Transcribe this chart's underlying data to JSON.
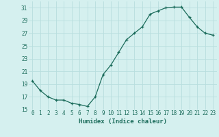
{
  "x": [
    0,
    1,
    2,
    3,
    4,
    5,
    6,
    7,
    8,
    9,
    10,
    11,
    12,
    13,
    14,
    15,
    16,
    17,
    18,
    19,
    20,
    21,
    22,
    23
  ],
  "y": [
    19.5,
    18.0,
    17.0,
    16.5,
    16.5,
    16.0,
    15.8,
    15.5,
    17.0,
    20.5,
    22.0,
    24.0,
    26.0,
    27.0,
    28.0,
    30.0,
    30.5,
    31.0,
    31.1,
    31.1,
    29.5,
    28.0,
    27.0,
    26.7
  ],
  "xlabel": "Humidex (Indice chaleur)",
  "ylim": [
    15,
    32
  ],
  "xlim_min": -0.5,
  "xlim_max": 23.5,
  "yticks": [
    15,
    17,
    19,
    21,
    23,
    25,
    27,
    29,
    31
  ],
  "xticks": [
    0,
    1,
    2,
    3,
    4,
    5,
    6,
    7,
    8,
    9,
    10,
    11,
    12,
    13,
    14,
    15,
    16,
    17,
    18,
    19,
    20,
    21,
    22,
    23
  ],
  "xtick_labels": [
    "0",
    "1",
    "2",
    "3",
    "4",
    "5",
    "6",
    "7",
    "8",
    "9",
    "10",
    "11",
    "12",
    "13",
    "14",
    "15",
    "16",
    "17",
    "18",
    "19",
    "20",
    "21",
    "22",
    "23"
  ],
  "line_color": "#1a6b5a",
  "marker": "+",
  "bg_color": "#d5f0ef",
  "grid_color": "#b8dede",
  "xlabel_fontsize": 6.5,
  "tick_fontsize": 5.5,
  "linewidth": 0.9,
  "markersize": 3.5,
  "markeredgewidth": 0.9
}
